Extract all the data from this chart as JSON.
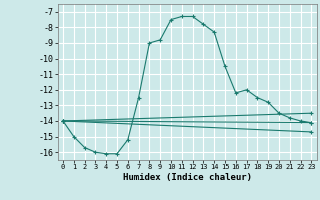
{
  "xlabel": "Humidex (Indice chaleur)",
  "background_color": "#cde9e9",
  "grid_color": "#ffffff",
  "line_color": "#1a7a6e",
  "xlim": [
    -0.5,
    23.5
  ],
  "ylim": [
    -16.5,
    -6.5
  ],
  "yticks": [
    -7,
    -8,
    -9,
    -10,
    -11,
    -12,
    -13,
    -14,
    -15,
    -16
  ],
  "xticks": [
    0,
    1,
    2,
    3,
    4,
    5,
    6,
    7,
    8,
    9,
    10,
    11,
    12,
    13,
    14,
    15,
    16,
    17,
    18,
    19,
    20,
    21,
    22,
    23
  ],
  "series1_x": [
    0,
    1,
    2,
    3,
    4,
    5,
    6,
    7,
    8,
    9,
    10,
    11,
    12,
    13,
    14,
    15,
    16,
    17,
    18,
    19,
    20,
    21,
    22,
    23
  ],
  "series1_y": [
    -14.0,
    -15.0,
    -15.7,
    -16.0,
    -16.1,
    -16.1,
    -15.2,
    -12.5,
    -9.0,
    -8.8,
    -7.5,
    -7.3,
    -7.3,
    -7.8,
    -8.3,
    -10.5,
    -12.2,
    -12.0,
    -12.5,
    -12.8,
    -13.5,
    -13.8,
    -14.0,
    -14.1
  ],
  "series2_x": [
    0,
    23
  ],
  "series2_y": [
    -14.0,
    -14.1
  ],
  "series3_x": [
    0,
    23
  ],
  "series3_y": [
    -14.0,
    -14.7
  ],
  "series4_x": [
    0,
    23
  ],
  "series4_y": [
    -14.0,
    -13.5
  ]
}
